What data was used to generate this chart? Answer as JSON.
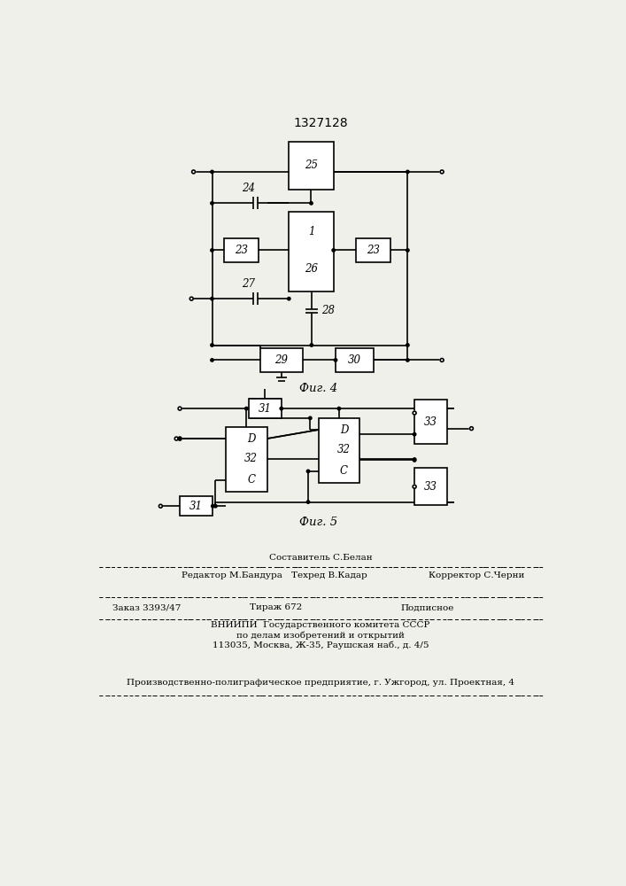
{
  "title": "1327128",
  "fig4_label": "Фиг. 4",
  "fig5_label": "Фиг. 5",
  "bg_color": "#f0f0eb",
  "lw": 1.2
}
